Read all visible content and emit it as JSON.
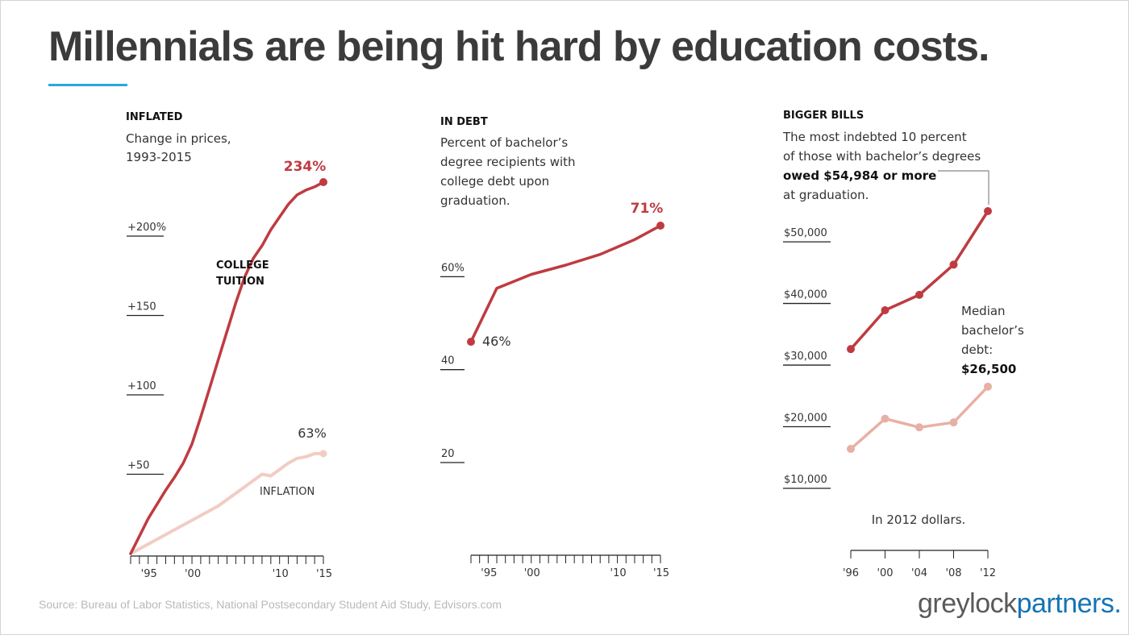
{
  "title": "Millennials are being hit hard by education costs.",
  "source": "Source: Bureau of Labor Statistics, National Postsecondary Student Aid Study, Edvisors.com",
  "logo": {
    "part1": "greylock",
    "part2": "partners."
  },
  "colors": {
    "title": "#3b3b3b",
    "accent_rule": "#29a8df",
    "tuition": "#bf3b41",
    "inflation": "#f1cdc4",
    "median_debt": "#e8b0a4",
    "text": "#333333",
    "logo_grey": "#5a5a5a",
    "logo_blue": "#1573b6"
  },
  "chart_data": [
    {
      "type": "line",
      "heading": "INFLATED",
      "subtitle": [
        "Change in prices,",
        "1993-2015"
      ],
      "ylim": [
        0,
        234
      ],
      "y_ticks": [
        50,
        100,
        150,
        200
      ],
      "y_tick_labels": [
        "+50",
        "+100",
        "+150",
        "+200%"
      ],
      "x_range": [
        1993,
        2015
      ],
      "x_tick_labels": [
        {
          "x": 1995,
          "label": "'95"
        },
        {
          "x": 2000,
          "label": "'00"
        },
        {
          "x": 2010,
          "label": "'10"
        },
        {
          "x": 2015,
          "label": "'15"
        }
      ],
      "series": [
        {
          "name": "COLLEGE TUITION",
          "name_lines": [
            "COLLEGE",
            "TUITION"
          ],
          "color": "#bf3b41",
          "x": [
            1993,
            1994,
            1995,
            1996,
            1997,
            1998,
            1999,
            2000,
            2001,
            2002,
            2003,
            2004,
            2005,
            2006,
            2007,
            2008,
            2009,
            2010,
            2011,
            2012,
            2013,
            2014,
            2015
          ],
          "values": [
            0,
            11,
            22,
            31,
            40,
            48,
            57,
            69,
            86,
            104,
            122,
            140,
            158,
            174,
            186,
            194,
            204,
            212,
            220,
            226,
            229,
            231,
            234
          ],
          "end_label": "234%"
        },
        {
          "name": "INFLATION",
          "name_lines": [
            "INFLATION"
          ],
          "color": "#f1cdc4",
          "x": [
            1993,
            1995,
            1997,
            1999,
            2001,
            2003,
            2005,
            2007,
            2008,
            2009,
            2010,
            2011,
            2012,
            2013,
            2014,
            2015
          ],
          "values": [
            0,
            6,
            12,
            18,
            24,
            30,
            38,
            46,
            50,
            49,
            53,
            57,
            60,
            61,
            63,
            63
          ],
          "end_label": "63%"
        }
      ]
    },
    {
      "type": "line",
      "heading": "IN DEBT",
      "subtitle": [
        "Percent of bachelor’s",
        "degree recipients with",
        "college debt upon",
        "graduation."
      ],
      "ylim": [
        20,
        71
      ],
      "y_ticks": [
        20,
        40,
        60
      ],
      "y_tick_labels": [
        "20",
        "40",
        "60%"
      ],
      "x_range": [
        1993,
        2015
      ],
      "x_tick_labels": [
        {
          "x": 1995,
          "label": "'95"
        },
        {
          "x": 2000,
          "label": "'00"
        },
        {
          "x": 2010,
          "label": "'10"
        },
        {
          "x": 2015,
          "label": "'15"
        }
      ],
      "series": [
        {
          "name": "",
          "color": "#bf3b41",
          "x": [
            1993,
            1996,
            2000,
            2004,
            2008,
            2012,
            2015
          ],
          "values": [
            46,
            57.5,
            60.5,
            62.5,
            64.8,
            68,
            71
          ],
          "start_label": "46%",
          "end_label": "71%"
        }
      ]
    },
    {
      "type": "line",
      "heading": "BIGGER BILLS",
      "subtitle": [
        "The most indebted 10 percent",
        "of those with bachelor’s degrees",
        "owed $54,984 or more",
        "at graduation."
      ],
      "subtitle_bold_line": 2,
      "ylim": [
        10000,
        54984
      ],
      "y_ticks": [
        10000,
        20000,
        30000,
        40000,
        50000
      ],
      "y_tick_labels": [
        "$10,000",
        "$20,000",
        "$30,000",
        "$40,000",
        "$50,000"
      ],
      "note": "In 2012 dollars.",
      "categories": [
        "'96",
        "'00",
        "'04",
        "'08",
        "'12"
      ],
      "series": [
        {
          "name": "Most indebted 10 percent",
          "color": "#bf3b41",
          "values": [
            32600,
            38900,
            41400,
            46300,
            54984
          ]
        },
        {
          "name": "Median bachelor’s debt",
          "color": "#e8b0a4",
          "values": [
            16400,
            21300,
            19900,
            20700,
            26500
          ],
          "label_lines": [
            "Median",
            "bachelor’s",
            "debt:"
          ],
          "label_value": "$26,500"
        }
      ]
    }
  ]
}
